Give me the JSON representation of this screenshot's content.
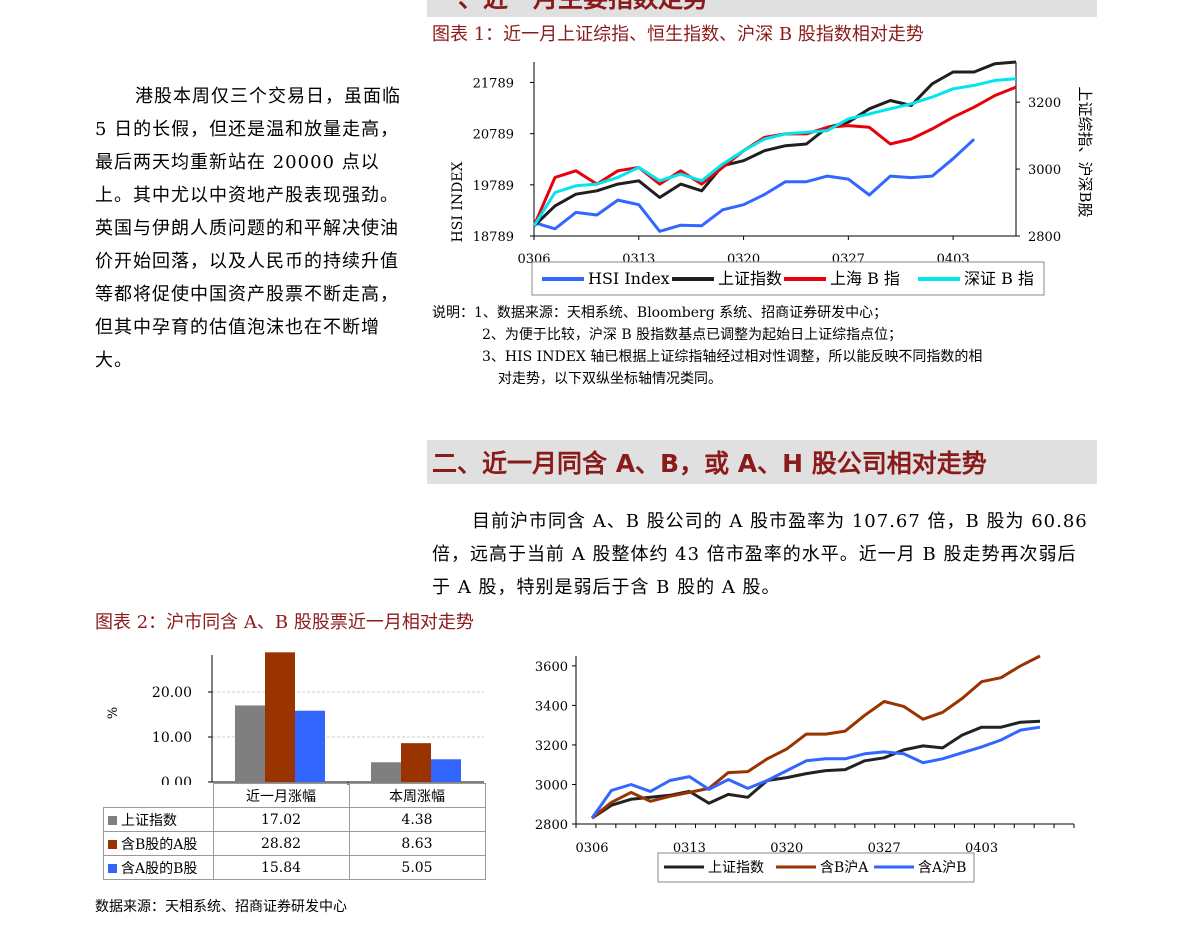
{
  "section1": {
    "partial_heading": "一、近一月主要指数走势"
  },
  "chart1": {
    "caption": "图表 1：近一月上证综指、恒生指数、沪深 B 股指数相对走势",
    "left_axis_label": "HSI INDEX",
    "right_axis_label": "上证综指、沪深B股",
    "left_ticks": [
      "21789",
      "20789",
      "19789",
      "18789"
    ],
    "right_ticks": [
      "3200",
      "3000",
      "2800"
    ],
    "x_ticks": [
      "0306",
      "0313",
      "0320",
      "0327",
      "0403"
    ],
    "legend": [
      "HSI Index",
      "上证指数",
      "上海 B 指",
      "深证 B 指"
    ]
  },
  "left_paragraph": "港股本周仅三个交易日，虽面临 5 日的长假，但还是温和放量走高，最后两天均重新站在 20000 点以上。其中尤以中资地产股表现强劲。英国与伊朗人质问题的和平解决使油价开始回落，以及人民币的持续升值等都将促使中国资产股票不断走高，但其中孕育的估值泡沫也在不断增大。",
  "notes": {
    "prefix": "说明：",
    "n1": "1、数据来源：天相系统、Bloomberg 系统、招商证券研发中心；",
    "n2": "2、为便于比较，沪深 B 股指数基点已调整为起始日上证综指点位；",
    "n3a": "3、HIS INDEX 轴已根据上证综指轴经过相对性调整，所以能反映不同指数的相",
    "n3b": "对走势，以下双纵坐标轴情况类同。"
  },
  "section2": {
    "heading": "二、近一月同含 A、B，或 A、H 股公司相对走势",
    "paragraph": "目前沪市同含 A、B 股公司的 A 股市盈率为 107.67 倍，B 股为 60.86 倍，远高于当前 A 股整体约 43 倍市盈率的水平。近一月 B 股走势再次弱后于 A 股，特别是弱后于含 B 股的 A 股。"
  },
  "chart2": {
    "caption": "图表 2：沪市同含 A、B 股股票近一月相对走势",
    "source": "数据来源：天相系统、招商证券研发中心",
    "ylabel": "%",
    "y_ticks": [
      "20.00",
      "10.00",
      "0.00"
    ],
    "columns": [
      "近一月涨幅",
      "本周涨幅"
    ],
    "rows": [
      {
        "label": "上证指数",
        "values": [
          "17.02",
          "4.38"
        ],
        "color": "#7f7f7f"
      },
      {
        "label": "含B股的A股",
        "values": [
          "28.82",
          "8.63"
        ],
        "color": "#993300"
      },
      {
        "label": "含A股的B股",
        "values": [
          "15.84",
          "5.05"
        ],
        "color": "#3366ff"
      }
    ]
  },
  "chart3": {
    "y_ticks": [
      "3600",
      "3400",
      "3200",
      "3000",
      "2800"
    ],
    "x_ticks": [
      "0306",
      "0313",
      "0320",
      "0327",
      "0403"
    ],
    "legend": [
      "上证指数",
      "含B沪A",
      "含A沪B"
    ]
  },
  "chart_data": [
    {
      "type": "line",
      "title": "近一月上证综指、恒生指数、沪深 B 股指数相对走势",
      "x_ticks": [
        "0306",
        "0313",
        "0320",
        "0327",
        "0403"
      ],
      "left_axis": {
        "label": "HSI INDEX",
        "range": [
          18789,
          22189
        ]
      },
      "right_axis": {
        "label": "上证综指、沪深B股",
        "range": [
          2800,
          3320
        ]
      },
      "series": [
        {
          "name": "HSI Index",
          "axis": "left",
          "color": "#3366ff",
          "values": [
            19050,
            18930,
            19250,
            19200,
            19490,
            19400,
            18880,
            19000,
            18990,
            19300,
            19400,
            19600,
            19850,
            19850,
            19960,
            19900,
            19590,
            19960,
            19930,
            19960,
            20300,
            20680
          ]
        },
        {
          "name": "上证指数",
          "axis": "right",
          "color": "#1f1f1f",
          "values": [
            2830,
            2890,
            2925,
            2935,
            2955,
            2965,
            2915,
            2955,
            2935,
            3010,
            3025,
            3055,
            3070,
            3075,
            3125,
            3140,
            3180,
            3205,
            3190,
            3255,
            3290,
            3290,
            3315,
            3320
          ]
        },
        {
          "name": "上海 B 指",
          "axis": "right",
          "color": "#e8000b",
          "values": [
            2830,
            2975,
            2995,
            2955,
            2995,
            3005,
            2955,
            2995,
            2955,
            3005,
            3055,
            3095,
            3105,
            3105,
            3125,
            3130,
            3125,
            3075,
            3090,
            3120,
            3155,
            3185,
            3220,
            3245
          ]
        },
        {
          "name": "深证 B 指",
          "axis": "right",
          "color": "#00e5ee",
          "values": [
            2830,
            2930,
            2950,
            2955,
            2975,
            3005,
            2965,
            2985,
            2965,
            3015,
            3055,
            3090,
            3105,
            3110,
            3115,
            3150,
            3165,
            3180,
            3195,
            3215,
            3240,
            3250,
            3265,
            3270
          ]
        }
      ]
    },
    {
      "type": "bar",
      "title": "沪市同含 A、B 股股票近一月相对走势",
      "ylabel": "%",
      "ylim": [
        0,
        30
      ],
      "categories": [
        "近一月涨幅",
        "本周涨幅"
      ],
      "series": [
        {
          "name": "上证指数",
          "values": [
            17.02,
            4.38
          ],
          "color": "#7f7f7f"
        },
        {
          "name": "含B股的A股",
          "values": [
            28.82,
            8.63
          ],
          "color": "#993300"
        },
        {
          "name": "含A股的B股",
          "values": [
            15.84,
            5.05
          ],
          "color": "#3366ff"
        }
      ]
    },
    {
      "type": "line",
      "x_ticks": [
        "0306",
        "0313",
        "0320",
        "0327",
        "0403"
      ],
      "ylim": [
        2800,
        3650
      ],
      "series": [
        {
          "name": "上证指数",
          "color": "#222222",
          "values": [
            2830,
            2895,
            2925,
            2935,
            2945,
            2965,
            2905,
            2950,
            2935,
            3020,
            3035,
            3055,
            3070,
            3075,
            3120,
            3135,
            3175,
            3195,
            3185,
            3250,
            3290,
            3290,
            3315,
            3320
          ]
        },
        {
          "name": "含B沪A",
          "color": "#993300",
          "values": [
            2830,
            2910,
            2960,
            2915,
            2940,
            2960,
            2980,
            3060,
            3065,
            3130,
            3180,
            3255,
            3255,
            3270,
            3350,
            3420,
            3395,
            3330,
            3365,
            3435,
            3520,
            3540,
            3600,
            3650
          ]
        },
        {
          "name": "含A沪B",
          "color": "#3366ff",
          "values": [
            2830,
            2970,
            3000,
            2965,
            3020,
            3040,
            2975,
            3025,
            2980,
            3020,
            3070,
            3120,
            3130,
            3130,
            3155,
            3165,
            3155,
            3110,
            3130,
            3160,
            3190,
            3225,
            3275,
            3290
          ]
        }
      ]
    }
  ]
}
